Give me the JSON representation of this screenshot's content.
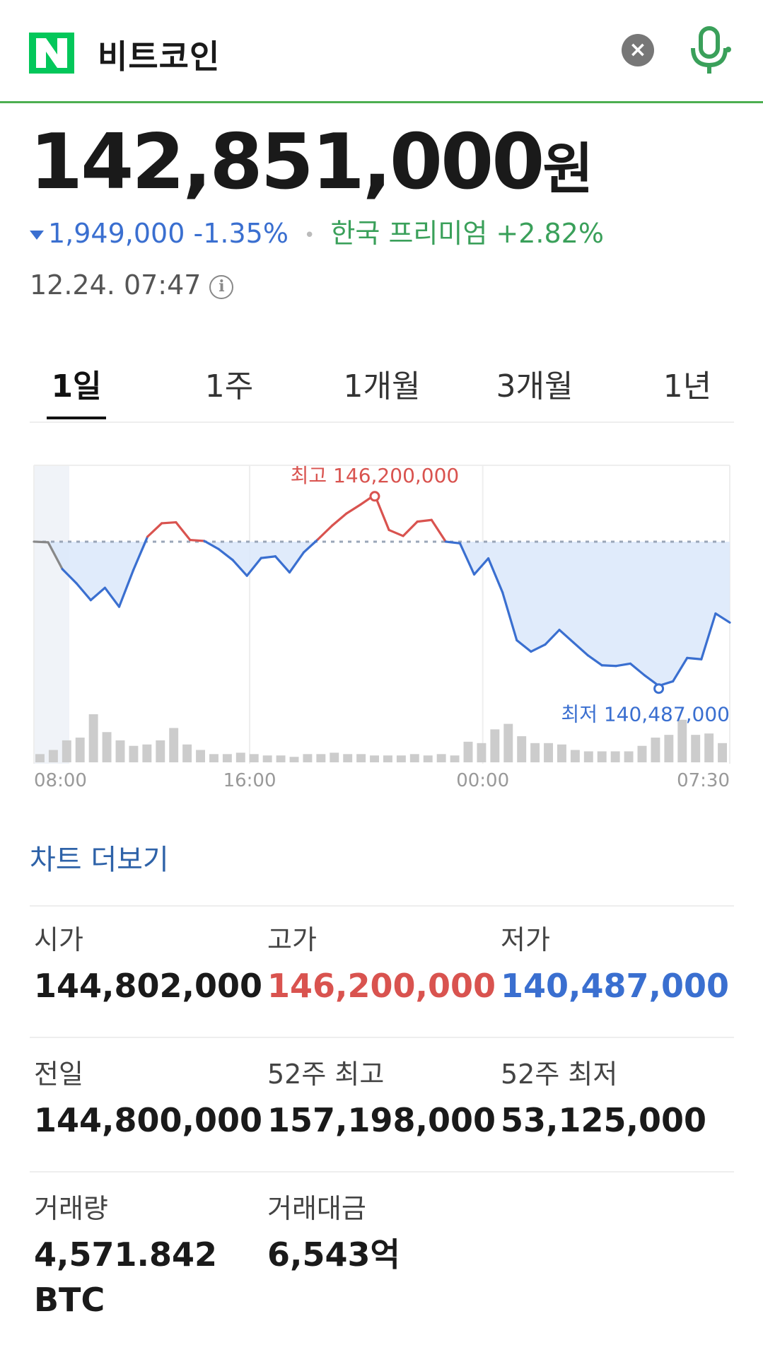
{
  "header": {
    "query": "비트코인",
    "logo_letter": "N",
    "brand_color": "#03c75a",
    "accent_line_color": "#4caf50",
    "clear_icon": "close-icon",
    "mic_icon": "microphone-icon"
  },
  "quote": {
    "price": "142,851,000",
    "unit": "원",
    "change": "1,949,000",
    "change_pct": "-1.35%",
    "direction": "down",
    "premium_label": "한국 프리미엄",
    "premium_value": "+2.82%",
    "timestamp": "12.24. 07:47",
    "info_icon": "info-icon",
    "colors": {
      "down": "#3a6fd0",
      "up": "#d9534f",
      "premium": "#3aa05a"
    }
  },
  "tabs": [
    {
      "label": "1일",
      "active": true
    },
    {
      "label": "1주",
      "active": false
    },
    {
      "label": "1개월",
      "active": false
    },
    {
      "label": "3개월",
      "active": false
    },
    {
      "label": "1년",
      "active": false
    }
  ],
  "chart_data": {
    "type": "line",
    "x_tick_labels": [
      "08:00",
      "16:00",
      "00:00",
      "07:30"
    ],
    "baseline": 144800000,
    "ylim": [
      139000000,
      147000000
    ],
    "high_label": "최고 146,200,000",
    "low_label": "최저 140,487,000",
    "high": 146200000,
    "low": 140487000,
    "series": [
      {
        "values": [
          144800000,
          144780000,
          143980000,
          143550000,
          143050000,
          143420000,
          142850000,
          143950000,
          144950000,
          145350000,
          145380000,
          144850000,
          144820000,
          144580000,
          144250000,
          143780000,
          144310000,
          144360000,
          143880000,
          144480000,
          144870000,
          145280000,
          145640000,
          145910000,
          146200000,
          145150000,
          144970000,
          145400000,
          145450000,
          144800000,
          144750000,
          143820000,
          144300000,
          143280000,
          141850000,
          141510000,
          141720000,
          142160000,
          141780000,
          141400000,
          141100000,
          141080000,
          141150000,
          140800000,
          140487000,
          140620000,
          141320000,
          141280000,
          142650000,
          142380000
        ]
      }
    ],
    "volume": [
      6,
      9,
      16,
      18,
      35,
      22,
      16,
      12,
      13,
      16,
      25,
      13,
      9,
      6,
      6,
      7,
      6,
      5,
      5,
      4,
      6,
      6,
      7,
      6,
      6,
      5,
      5,
      5,
      6,
      5,
      6,
      5,
      15,
      14,
      24,
      28,
      19,
      14,
      14,
      13,
      9,
      8,
      8,
      8,
      8,
      12,
      18,
      20,
      31,
      20,
      21,
      14
    ],
    "colors": {
      "up": "#d9534f",
      "down": "#3a6fd0",
      "prev_session": "#888888",
      "volume": "#cccccc",
      "fill": "#dbe8fa"
    },
    "grid": true
  },
  "more_link": "차트 더보기",
  "stats": [
    {
      "label": "시가",
      "value": "144,802,000",
      "color": "default"
    },
    {
      "label": "고가",
      "value": "146,200,000",
      "color": "red"
    },
    {
      "label": "저가",
      "value": "140,487,000",
      "color": "blue"
    },
    {
      "label": "전일",
      "value": "144,800,000",
      "color": "default"
    },
    {
      "label": "52주 최고",
      "value": "157,198,000",
      "color": "default"
    },
    {
      "label": "52주 최저",
      "value": "53,125,000",
      "color": "default"
    },
    {
      "label": "거래량",
      "value": "4,571.842",
      "value2": "BTC",
      "color": "default"
    },
    {
      "label": "거래대금",
      "value": "6,543억",
      "color": "default"
    }
  ]
}
